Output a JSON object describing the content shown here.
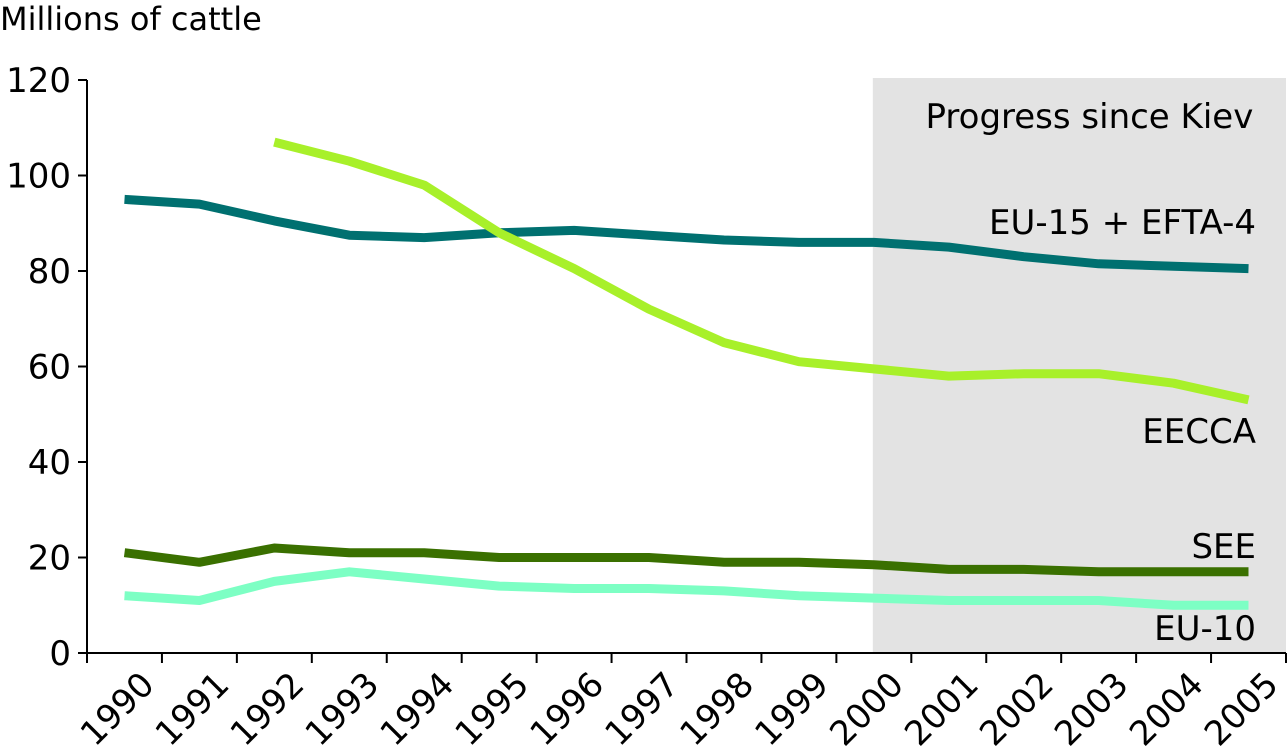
{
  "chart_data": {
    "type": "line",
    "title": "",
    "ylabel": "Millions of cattle",
    "xlabel": "",
    "ylim": [
      0,
      120
    ],
    "yticks": [
      0,
      20,
      40,
      60,
      80,
      100,
      120
    ],
    "categories": [
      "1990",
      "1991",
      "1992",
      "1993",
      "1994",
      "1995",
      "1996",
      "1997",
      "1998",
      "1999",
      "2000",
      "2001",
      "2002",
      "2003",
      "2004",
      "2005"
    ],
    "grid": false,
    "shaded_region": {
      "from": "2000",
      "to": "2005",
      "label": "Progress since Kiev",
      "color": "#e3e3e3"
    },
    "series": [
      {
        "name": "EU-15 + EFTA-4",
        "color": "#007070",
        "values": [
          95,
          94,
          90.5,
          87.5,
          87,
          88,
          88.5,
          87.5,
          86.5,
          86,
          86,
          85,
          83,
          81.5,
          81,
          80.5
        ]
      },
      {
        "name": "EECCA",
        "color": "#a8f02a",
        "values": [
          null,
          null,
          107,
          103,
          98,
          88,
          80.5,
          72,
          65,
          61,
          59.5,
          58,
          58.5,
          58.5,
          56.5,
          53
        ]
      },
      {
        "name": "SEE",
        "color": "#3a7000",
        "values": [
          21,
          19,
          22,
          21,
          21,
          20,
          20,
          20,
          19,
          19,
          18.5,
          17.5,
          17.5,
          17,
          17,
          17
        ]
      },
      {
        "name": "EU-10",
        "color": "#7dffc4",
        "values": [
          12,
          11,
          15,
          17,
          15.5,
          14,
          13.5,
          13.5,
          13,
          12,
          11.5,
          11,
          11,
          11,
          10,
          10
        ]
      }
    ]
  }
}
